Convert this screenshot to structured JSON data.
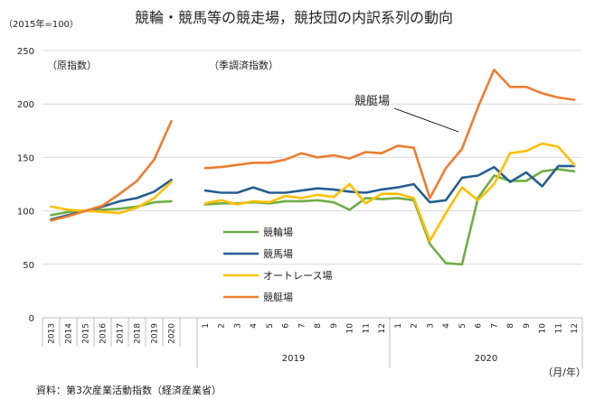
{
  "chart_data": {
    "type": "line",
    "title": "競輪・競馬等の競走場，競技団の内訳系列の動向",
    "y_unit_label": "（2015年=100）",
    "ylim": [
      0,
      250
    ],
    "yticks": [
      0,
      50,
      100,
      150,
      200,
      250
    ],
    "panel_labels": {
      "annual": "（原指数）",
      "monthly": "（季調済指数）"
    },
    "source": "資料：第3次産業活動指数（経済産業省）",
    "x_unit": "（月/年）",
    "annual": {
      "categories": [
        "2013",
        "2014",
        "2015",
        "2016",
        "2017",
        "2018",
        "2019",
        "2020"
      ],
      "series": [
        {
          "name": "競輪場",
          "color": "#70AD47",
          "values": [
            96,
            99,
            100,
            101,
            102,
            104,
            108,
            109
          ]
        },
        {
          "name": "競馬場",
          "color": "#255E91",
          "values": [
            92,
            96,
            100,
            104,
            109,
            112,
            118,
            129
          ]
        },
        {
          "name": "オートレース場",
          "color": "#FFC000",
          "values": [
            104,
            101,
            100,
            99,
            98,
            103,
            112,
            127
          ]
        },
        {
          "name": "競艇場",
          "color": "#ED7D31",
          "values": [
            91,
            95,
            100,
            105,
            116,
            128,
            148,
            184
          ]
        }
      ]
    },
    "monthly": {
      "years": [
        "2019",
        "2020"
      ],
      "months": [
        "1",
        "2",
        "3",
        "4",
        "5",
        "6",
        "7",
        "8",
        "9",
        "10",
        "11",
        "12",
        "1",
        "2",
        "3",
        "4",
        "5",
        "6",
        "7",
        "8",
        "9",
        "10",
        "11",
        "12"
      ],
      "series": [
        {
          "name": "競輪場",
          "color": "#70AD47",
          "values": [
            106,
            107,
            107,
            108,
            107,
            109,
            109,
            110,
            108,
            101,
            112,
            111,
            112,
            110,
            69,
            51,
            50,
            112,
            133,
            128,
            128,
            137,
            139,
            137
          ]
        },
        {
          "name": "競馬場",
          "color": "#255E91",
          "values": [
            119,
            117,
            117,
            122,
            117,
            117,
            119,
            121,
            120,
            118,
            117,
            120,
            122,
            125,
            108,
            110,
            131,
            133,
            141,
            127,
            136,
            123,
            142,
            142
          ]
        },
        {
          "name": "オートレース場",
          "color": "#FFC000",
          "values": [
            107,
            110,
            106,
            109,
            108,
            114,
            112,
            115,
            113,
            125,
            107,
            116,
            116,
            112,
            72,
            98,
            122,
            110,
            125,
            154,
            156,
            163,
            160,
            143
          ]
        },
        {
          "name": "競艇場",
          "color": "#ED7D31",
          "values": [
            140,
            141,
            143,
            145,
            145,
            148,
            154,
            150,
            152,
            149,
            155,
            154,
            161,
            159,
            112,
            140,
            158,
            197,
            232,
            216,
            216,
            210,
            206,
            204
          ]
        }
      ]
    },
    "legend": [
      "競輪場",
      "競馬場",
      "オートレース場",
      "競艇場"
    ],
    "annotation": "競艇場"
  }
}
